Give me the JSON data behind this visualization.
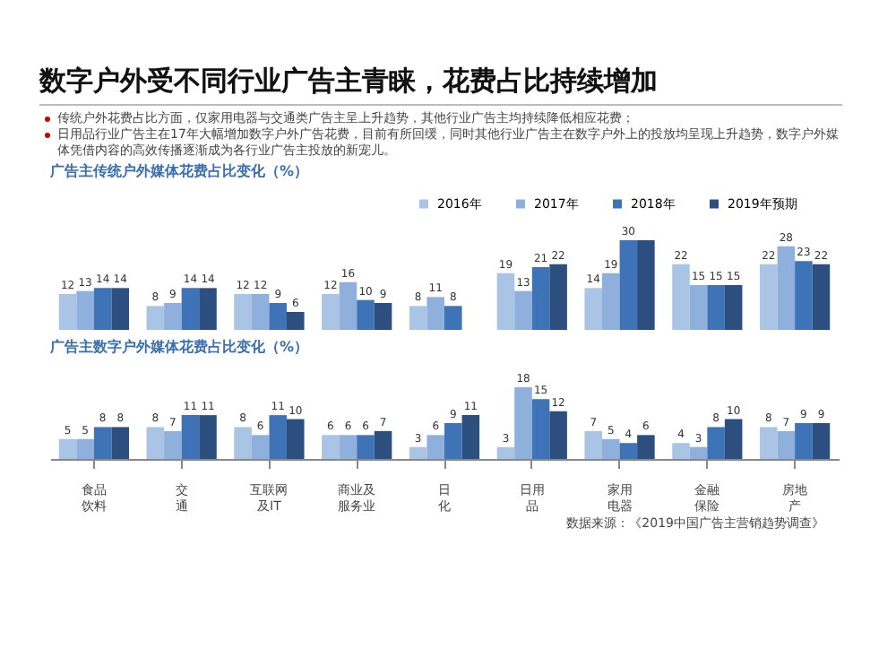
{
  "chart_data": [
    {
      "type": "other",
      "title": "数字户外受不同行业广告主青睐，花费占比持续增加",
      "annotations": [
        "传统户外花费占比方面，仅家用电器与交通类广告主呈上升趋势，其他行业广告主均持续降低相应花费；",
        "日用品行业广告主在17年大幅增加数字户外广告花费，目前有所回缓，同时其他行业广告主在数字户外上的投放均呈现上升趋势，数字户外媒体凭借内容的高效传播逐渐成为各行业广告主投放的新宠儿。"
      ]
    },
    {
      "type": "bar",
      "title": "广告主传统户外媒体花费占比变化（%）",
      "categories": [
        "食品饮料",
        "交通",
        "互联网及IT",
        "商业及服务业",
        "日化",
        "日用品",
        "家用电器",
        "金融保险",
        "房地产"
      ],
      "tick_labels": false,
      "legend": "top right",
      "series": [
        {
          "name": "2016年",
          "color": "#a9c4e4",
          "values": [
            12,
            8,
            12,
            12,
            8,
            19,
            14,
            22,
            22
          ],
          "value_labels": [
            "12",
            "8",
            "12",
            "12",
            "8",
            "19",
            "14",
            "22",
            "22"
          ]
        },
        {
          "name": "2017年",
          "color": "#8fb0dc",
          "values": [
            13,
            9,
            12,
            16,
            11,
            13,
            19,
            15,
            28
          ],
          "value_labels": [
            "13",
            "9",
            "12",
            "16",
            "11",
            "13",
            "19",
            "15",
            "28"
          ]
        },
        {
          "name": "2018年",
          "color": "#3f73b8",
          "values": [
            14,
            14,
            9,
            10,
            8,
            21,
            30,
            15,
            23
          ],
          "value_labels": [
            "14",
            "14",
            "9",
            "10",
            "8",
            "21",
            "30",
            "15",
            "23"
          ]
        },
        {
          "name": "2019年预期",
          "color": "#2c4f7f",
          "values": [
            14,
            14,
            6,
            9,
            null,
            22,
            30,
            15,
            22
          ],
          "value_labels": [
            "14",
            "14",
            "6",
            "9",
            null,
            "22",
            null,
            "15",
            "22"
          ]
        }
      ]
    },
    {
      "type": "bar",
      "title": "广告主数字户外媒体花费占比变化（%）",
      "categories": [
        "食品饮料",
        "交通",
        "互联网及IT",
        "商业及服务业",
        "日化",
        "日用品",
        "家用电器",
        "金融保险",
        "房地产"
      ],
      "tick_labels": "x",
      "data_labels": true,
      "annotations": [
        "数据来源：《2019中国广告主营销趋势调查》"
      ],
      "series": [
        {
          "color": "#a9c4e4",
          "values": [
            5,
            8,
            8,
            6,
            3,
            3,
            7,
            4,
            8
          ]
        },
        {
          "color": "#8fb0dc",
          "values": [
            5,
            7,
            6,
            6,
            6,
            18,
            5,
            3,
            7
          ]
        },
        {
          "color": "#3f73b8",
          "values": [
            8,
            11,
            11,
            6,
            9,
            15,
            4,
            8,
            9
          ]
        },
        {
          "color": "#2c4f7f",
          "values": [
            8,
            11,
            10,
            7,
            11,
            12,
            6,
            10,
            9
          ]
        }
      ]
    }
  ]
}
